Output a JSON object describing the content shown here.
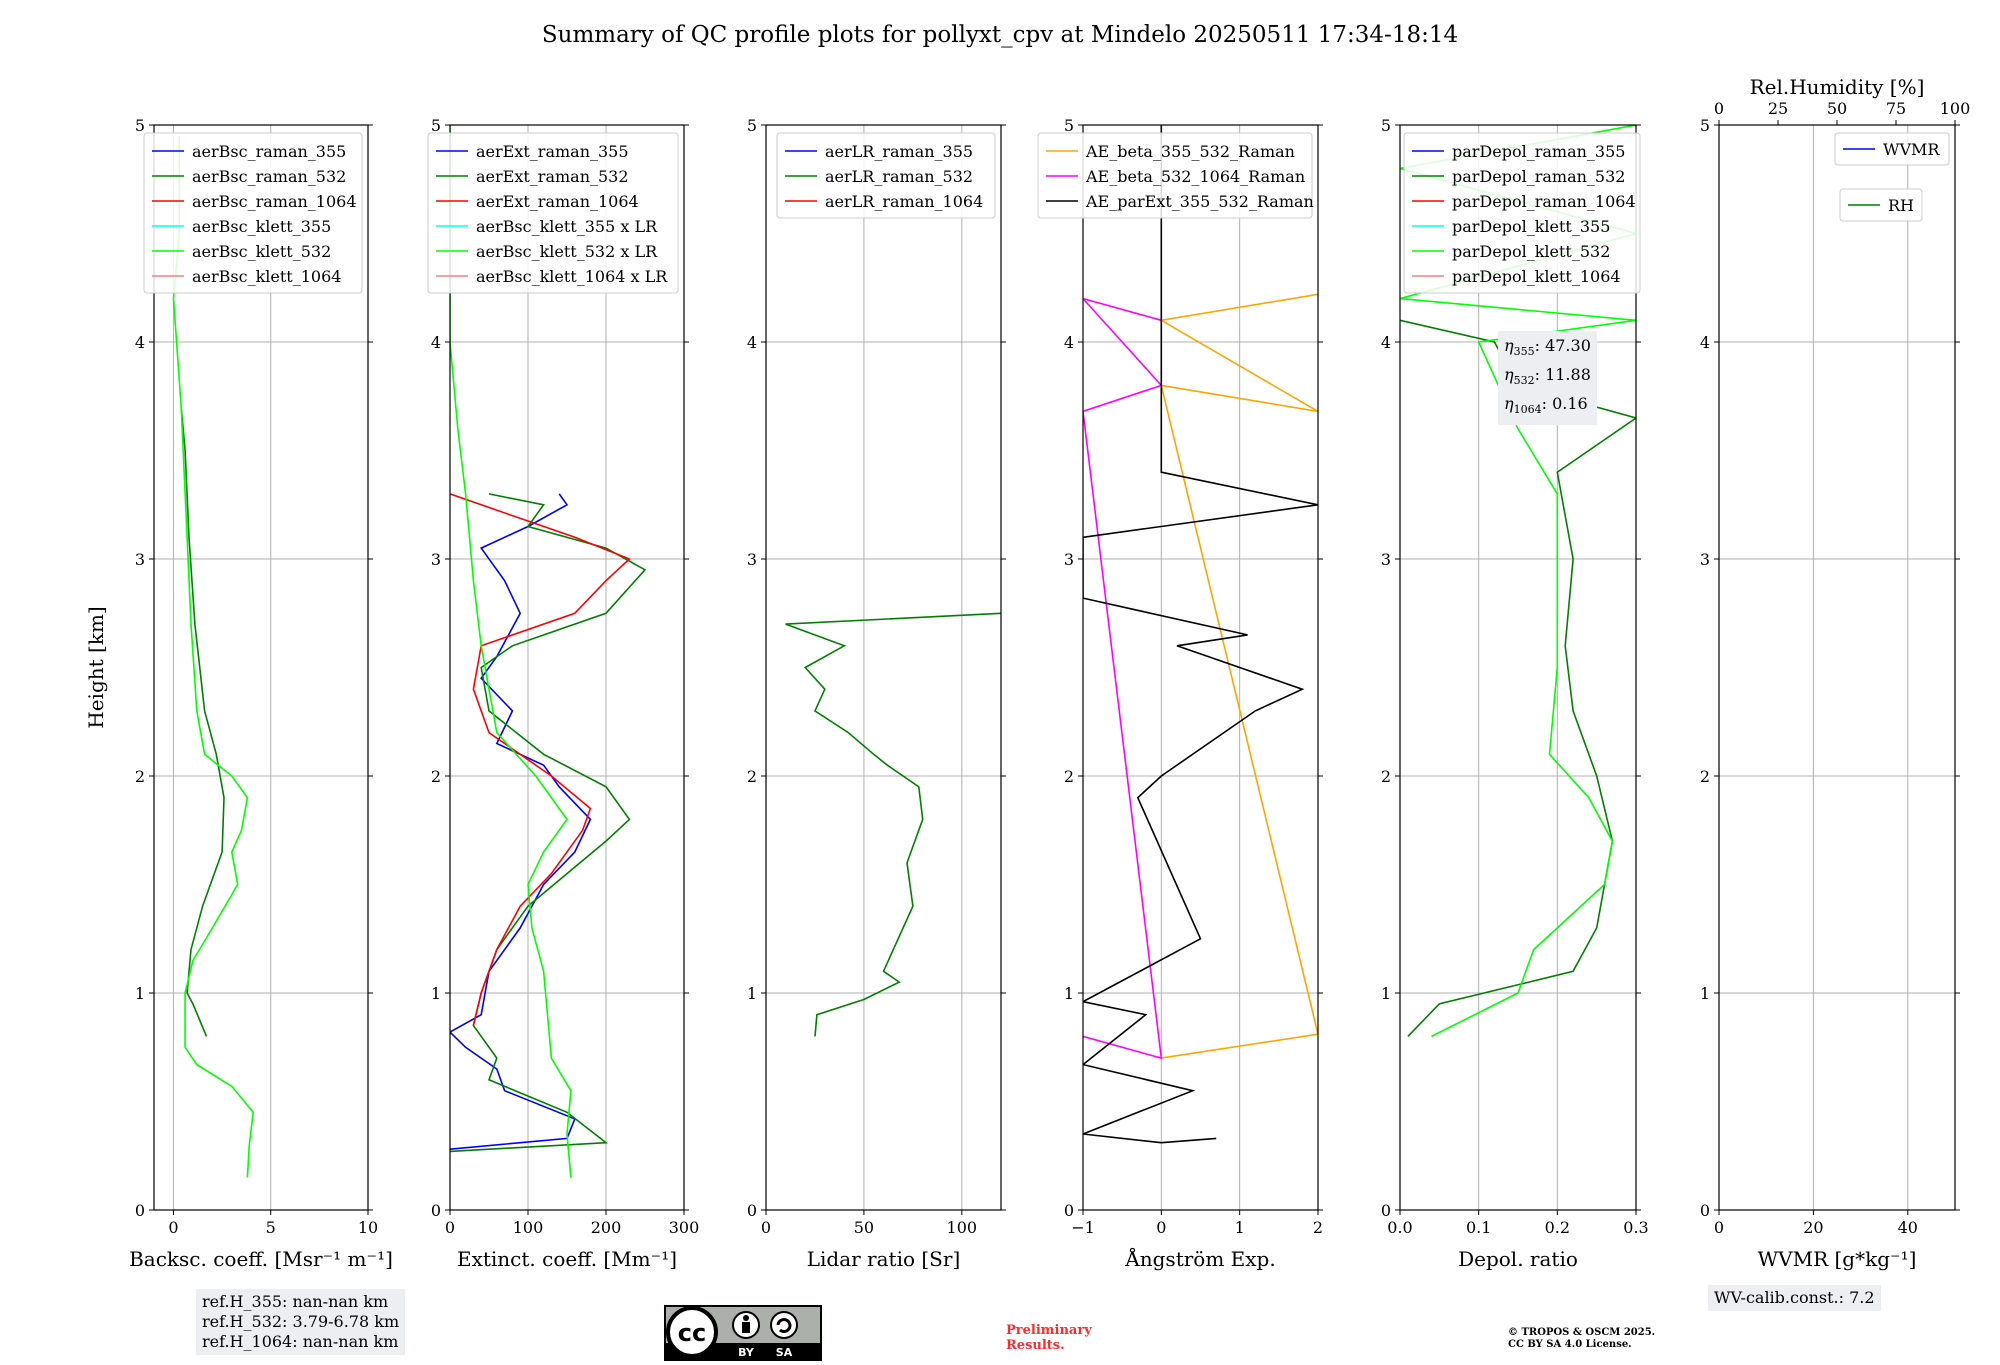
{
  "title": "Summary of QC profile plots for pollyxt_cpv at Mindelo 20250511 17:34-18:14",
  "ref_heights": [
    "ref.H_355: nan-nan km",
    "ref.H_532: 3.79-6.78 km",
    "ref.H_1064: nan-nan km"
  ],
  "eta_values": [
    {
      "label": "η",
      "sub": "355",
      "value": ": 47.30"
    },
    {
      "label": "η",
      "sub": "532",
      "value": ": 11.88"
    },
    {
      "label": "η",
      "sub": "1064",
      "value": ": 0.16"
    }
  ],
  "wv_calib": "WV-calib.const.: 7.2",
  "preliminary": [
    "Preliminary",
    "Results."
  ],
  "copyright": [
    "© TROPOS & OSCM 2025.",
    "CC BY SA 4.0 License."
  ],
  "cc_badge": {
    "cc": "cc",
    "by": "BY",
    "sa": "SA"
  },
  "colors": {
    "raman355": "#0000ff",
    "raman532": "#008000",
    "raman1064": "#ff0000",
    "klett355": "#00ffff",
    "klett532": "#00ff00",
    "klett1064": "#f08080",
    "orange": "#ffa500",
    "magenta": "#ff00ff",
    "black": "#000000"
  },
  "chart_data": [
    {
      "type": "line",
      "xlabel": "Backsc. coeff. [Msr⁻¹ m⁻¹]",
      "ylabel": "Height [km]",
      "xlim": [
        -1,
        10
      ],
      "ylim": [
        0,
        5
      ],
      "xticks": [
        0,
        5,
        10
      ],
      "yticks": [
        0,
        1,
        2,
        3,
        4,
        5
      ],
      "grid": true,
      "legend": "top-right",
      "series": [
        {
          "name": "aerBsc_raman_355",
          "color": "#0000ff",
          "points": []
        },
        {
          "name": "aerBsc_raman_532",
          "color": "#008000",
          "points": [
            [
              1.7,
              0.8
            ],
            [
              1.0,
              0.95
            ],
            [
              0.7,
              1.0
            ],
            [
              0.9,
              1.2
            ],
            [
              1.5,
              1.4
            ],
            [
              2.5,
              1.65
            ],
            [
              2.6,
              1.9
            ],
            [
              2.2,
              2.1
            ],
            [
              1.6,
              2.3
            ],
            [
              1.1,
              2.7
            ],
            [
              0.8,
              3.1
            ],
            [
              0.6,
              3.5
            ],
            [
              0.4,
              3.7
            ]
          ]
        },
        {
          "name": "aerBsc_raman_1064",
          "color": "#ff0000",
          "points": []
        },
        {
          "name": "aerBsc_klett_355",
          "color": "#00ffff",
          "points": []
        },
        {
          "name": "aerBsc_klett_532",
          "color": "#00ff00",
          "points": [
            [
              3.8,
              0.15
            ],
            [
              3.9,
              0.3
            ],
            [
              4.1,
              0.45
            ],
            [
              3.0,
              0.57
            ],
            [
              1.2,
              0.67
            ],
            [
              0.6,
              0.75
            ],
            [
              0.6,
              0.85
            ],
            [
              0.6,
              1.0
            ],
            [
              1.0,
              1.15
            ],
            [
              2.0,
              1.3
            ],
            [
              3.3,
              1.5
            ],
            [
              3.0,
              1.65
            ],
            [
              3.5,
              1.75
            ],
            [
              3.8,
              1.9
            ],
            [
              3.0,
              2.0
            ],
            [
              1.6,
              2.1
            ],
            [
              1.2,
              2.3
            ],
            [
              0.9,
              2.7
            ],
            [
              0.7,
              3.1
            ],
            [
              0.4,
              3.7
            ],
            [
              0.0,
              4.2
            ],
            [
              0.3,
              4.5
            ],
            [
              0.3,
              4.95
            ]
          ]
        },
        {
          "name": "aerBsc_klett_1064",
          "color": "#f08080",
          "points": []
        }
      ]
    },
    {
      "type": "line",
      "xlabel": "Extinct. coeff. [Mm⁻¹]",
      "ylabel": "",
      "xlim": [
        0,
        300
      ],
      "ylim": [
        0,
        5
      ],
      "xticks": [
        0,
        100,
        200,
        300
      ],
      "yticks": [
        0,
        1,
        2,
        3,
        4,
        5
      ],
      "grid": true,
      "legend": "top-right",
      "series": [
        {
          "name": "aerExt_raman_355",
          "color": "#0000ff",
          "points": [
            [
              0,
              0.28
            ],
            [
              150,
              0.33
            ],
            [
              160,
              0.42
            ],
            [
              70,
              0.55
            ],
            [
              60,
              0.65
            ],
            [
              20,
              0.75
            ],
            [
              0,
              0.82
            ],
            [
              40,
              0.9
            ],
            [
              50,
              1.1
            ],
            [
              90,
              1.3
            ],
            [
              120,
              1.5
            ],
            [
              160,
              1.65
            ],
            [
              180,
              1.8
            ],
            [
              140,
              1.95
            ],
            [
              120,
              2.05
            ],
            [
              60,
              2.15
            ],
            [
              80,
              2.3
            ],
            [
              40,
              2.45
            ],
            [
              60,
              2.55
            ],
            [
              90,
              2.75
            ],
            [
              70,
              2.9
            ],
            [
              40,
              3.05
            ],
            [
              100,
              3.15
            ],
            [
              150,
              3.25
            ],
            [
              140,
              3.3
            ]
          ]
        },
        {
          "name": "aerExt_raman_532",
          "color": "#008000",
          "points": [
            [
              0,
              0.27
            ],
            [
              200,
              0.31
            ],
            [
              150,
              0.45
            ],
            [
              50,
              0.6
            ],
            [
              60,
              0.7
            ],
            [
              30,
              0.85
            ],
            [
              40,
              1.0
            ],
            [
              60,
              1.2
            ],
            [
              100,
              1.4
            ],
            [
              150,
              1.55
            ],
            [
              200,
              1.7
            ],
            [
              230,
              1.8
            ],
            [
              200,
              1.95
            ],
            [
              120,
              2.1
            ],
            [
              50,
              2.3
            ],
            [
              40,
              2.5
            ],
            [
              80,
              2.6
            ],
            [
              200,
              2.75
            ],
            [
              250,
              2.95
            ],
            [
              200,
              3.05
            ],
            [
              100,
              3.15
            ],
            [
              120,
              3.25
            ],
            [
              50,
              3.3
            ]
          ]
        },
        {
          "name": "aerExt_raman_1064",
          "color": "#ff0000",
          "points": [
            [
              30,
              0.85
            ],
            [
              40,
              1.0
            ],
            [
              60,
              1.2
            ],
            [
              90,
              1.4
            ],
            [
              130,
              1.55
            ],
            [
              170,
              1.75
            ],
            [
              180,
              1.85
            ],
            [
              130,
              2.0
            ],
            [
              50,
              2.2
            ],
            [
              30,
              2.4
            ],
            [
              40,
              2.6
            ],
            [
              160,
              2.75
            ],
            [
              200,
              2.9
            ],
            [
              230,
              3.0
            ],
            [
              160,
              3.1
            ],
            [
              80,
              3.2
            ],
            [
              0,
              3.3
            ]
          ]
        },
        {
          "name": "aerBsc_klett_355 x LR",
          "color": "#00ffff",
          "points": []
        },
        {
          "name": "aerBsc_klett_532 x LR",
          "color": "#00ff00",
          "points": [
            [
              155,
              0.15
            ],
            [
              150,
              0.35
            ],
            [
              155,
              0.55
            ],
            [
              130,
              0.7
            ],
            [
              125,
              0.9
            ],
            [
              120,
              1.1
            ],
            [
              105,
              1.3
            ],
            [
              100,
              1.5
            ],
            [
              120,
              1.65
            ],
            [
              150,
              1.8
            ],
            [
              110,
              2.0
            ],
            [
              60,
              2.2
            ],
            [
              40,
              2.6
            ],
            [
              30,
              2.9
            ],
            [
              20,
              3.3
            ],
            [
              10,
              3.6
            ],
            [
              0,
              4.0
            ],
            [
              0,
              5.0
            ]
          ]
        },
        {
          "name": "aerBsc_klett_1064 x LR",
          "color": "#f08080",
          "points": []
        }
      ]
    },
    {
      "type": "line",
      "xlabel": "Lidar ratio [Sr]",
      "ylabel": "",
      "xlim": [
        0,
        120
      ],
      "ylim": [
        0,
        5
      ],
      "xticks": [
        0,
        50,
        100
      ],
      "yticks": [
        0,
        1,
        2,
        3,
        4,
        5
      ],
      "grid": true,
      "legend": "top-right",
      "series": [
        {
          "name": "aerLR_raman_355",
          "color": "#0000ff",
          "points": []
        },
        {
          "name": "aerLR_raman_532",
          "color": "#008000",
          "points": [
            [
              25,
              0.8
            ],
            [
              26,
              0.9
            ],
            [
              50,
              0.97
            ],
            [
              68,
              1.05
            ],
            [
              60,
              1.1
            ],
            [
              65,
              1.2
            ],
            [
              75,
              1.4
            ],
            [
              72,
              1.6
            ],
            [
              80,
              1.8
            ],
            [
              78,
              1.95
            ],
            [
              62,
              2.05
            ],
            [
              55,
              2.1
            ],
            [
              42,
              2.2
            ],
            [
              25,
              2.3
            ],
            [
              30,
              2.4
            ],
            [
              20,
              2.5
            ],
            [
              40,
              2.6
            ],
            [
              10,
              2.7
            ],
            [
              120,
              2.75
            ]
          ]
        },
        {
          "name": "aerLR_raman_1064",
          "color": "#ff0000",
          "points": []
        }
      ]
    },
    {
      "type": "line",
      "xlabel": "Ångström Exp.",
      "ylabel": "",
      "xlim": [
        -1,
        2
      ],
      "ylim": [
        0,
        5
      ],
      "xticks": [
        -1,
        0,
        1,
        2
      ],
      "yticks": [
        0,
        1,
        2,
        3,
        4,
        5
      ],
      "grid": true,
      "legend": "top-right",
      "series": [
        {
          "name": "AE_beta_355_532_Raman",
          "color": "#ffa500",
          "points": [
            [
              0,
              0.7
            ],
            [
              2,
              0.81
            ],
            [
              0,
              3.8
            ],
            [
              2,
              3.68
            ],
            [
              0,
              4.1
            ],
            [
              2,
              4.22
            ]
          ]
        },
        {
          "name": "AE_beta_532_1064_Raman",
          "color": "#ff00ff",
          "points": [
            [
              -1,
              0.8
            ],
            [
              0,
              0.7
            ],
            [
              -1,
              3.68
            ],
            [
              0,
              3.8
            ],
            [
              -1,
              4.2
            ],
            [
              0,
              4.1
            ]
          ]
        },
        {
          "name": "AE_parExt_355_532_Raman",
          "color": "#000000",
          "points": [
            [
              0.7,
              0.33
            ],
            [
              0,
              0.31
            ],
            [
              -1,
              0.35
            ],
            [
              0.4,
              0.55
            ],
            [
              -1,
              0.67
            ],
            [
              -0.2,
              0.9
            ],
            [
              -1,
              0.96
            ],
            [
              0.5,
              1.25
            ],
            [
              -0.3,
              1.9
            ],
            [
              0,
              2.0
            ],
            [
              1.2,
              2.3
            ],
            [
              1.8,
              2.4
            ],
            [
              0.2,
              2.6
            ],
            [
              1.1,
              2.65
            ],
            [
              -1,
              2.82
            ],
            [
              -1,
              3.1
            ],
            [
              2,
              3.25
            ],
            [
              0,
              3.4
            ],
            [
              0,
              5.0
            ]
          ]
        }
      ]
    },
    {
      "type": "line",
      "xlabel": "Depol. ratio",
      "ylabel": "",
      "xlim": [
        0,
        0.3
      ],
      "ylim": [
        0,
        5
      ],
      "xticks": [
        0.0,
        0.1,
        0.2,
        0.3
      ],
      "yticks": [
        0,
        1,
        2,
        3,
        4,
        5
      ],
      "grid": true,
      "legend": "top-left",
      "series": [
        {
          "name": "parDepol_raman_355",
          "color": "#0000ff",
          "points": []
        },
        {
          "name": "parDepol_raman_532",
          "color": "#008000",
          "points": [
            [
              0.01,
              0.8
            ],
            [
              0.05,
              0.95
            ],
            [
              0.22,
              1.1
            ],
            [
              0.25,
              1.3
            ],
            [
              0.27,
              1.7
            ],
            [
              0.25,
              2.0
            ],
            [
              0.22,
              2.3
            ],
            [
              0.21,
              2.6
            ],
            [
              0.22,
              3.0
            ],
            [
              0.2,
              3.4
            ],
            [
              0.3,
              3.65
            ],
            [
              0.15,
              3.8
            ],
            [
              0.12,
              4.0
            ],
            [
              0.0,
              4.1
            ]
          ]
        },
        {
          "name": "parDepol_raman_1064",
          "color": "#ff0000",
          "points": []
        },
        {
          "name": "parDepol_klett_355",
          "color": "#00ffff",
          "points": []
        },
        {
          "name": "parDepol_klett_532",
          "color": "#00ff00",
          "points": [
            [
              0.04,
              0.8
            ],
            [
              0.15,
              1.0
            ],
            [
              0.17,
              1.2
            ],
            [
              0.26,
              1.5
            ],
            [
              0.27,
              1.7
            ],
            [
              0.24,
              1.9
            ],
            [
              0.19,
              2.1
            ],
            [
              0.2,
              2.5
            ],
            [
              0.2,
              2.9
            ],
            [
              0.2,
              3.3
            ],
            [
              0.15,
              3.6
            ],
            [
              0.1,
              4.0
            ],
            [
              0.3,
              4.1
            ],
            [
              0.0,
              4.2
            ],
            [
              0.3,
              4.5
            ],
            [
              0.0,
              4.8
            ],
            [
              0.3,
              5.0
            ]
          ]
        },
        {
          "name": "parDepol_klett_1064",
          "color": "#f08080",
          "points": []
        }
      ]
    },
    {
      "type": "line",
      "xlabel": "WVMR [g*kg⁻¹]",
      "top_xlabel": "Rel.Humidity [%]",
      "ylabel": "",
      "xlim": [
        0,
        50
      ],
      "ylim": [
        0,
        5
      ],
      "xticks": [
        0,
        20,
        40
      ],
      "top_xticks": [
        0,
        25,
        50,
        75,
        100
      ],
      "yticks": [
        0,
        1,
        2,
        3,
        4,
        5
      ],
      "grid": true,
      "legend": "top-right",
      "series": [
        {
          "name": "WVMR",
          "color": "#0000ff",
          "points": []
        },
        {
          "name": "RH",
          "color": "#008000",
          "points": []
        }
      ]
    }
  ]
}
